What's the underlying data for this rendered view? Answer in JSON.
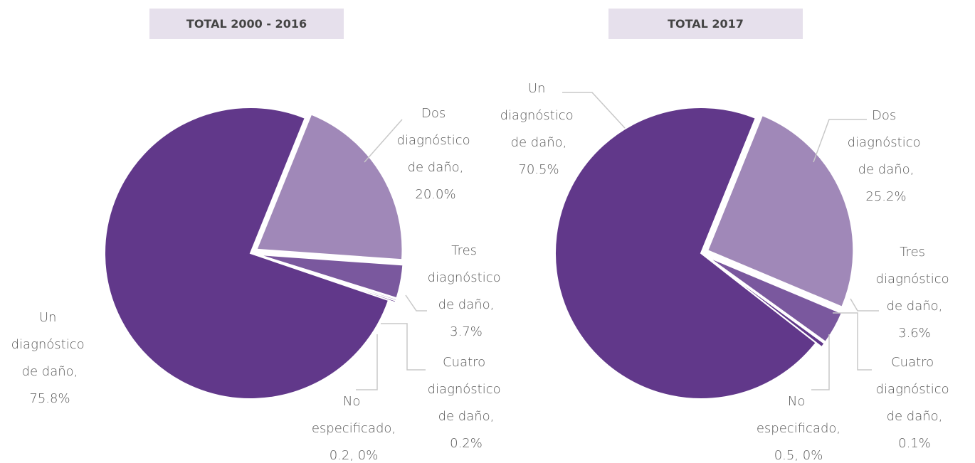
{
  "chart_data": [
    {
      "type": "pie",
      "title": "TOTAL 2000 - 2016",
      "categories": [
        "Dos diagnóstico de daño,",
        "Tres diagnóstico de daño,",
        "Cuatro diagnóstico de daño,",
        "No especificado,",
        "Un diagnóstico de daño,"
      ],
      "values": [
        20.0,
        3.7,
        0.2,
        0.2,
        75.8
      ],
      "value_labels": [
        "20.0%",
        "3.7%",
        "0.2%",
        "0.2, 0%",
        "75.8%"
      ],
      "colors": [
        "#a088b8",
        "#7a589e",
        "#a088b8",
        "#61388a",
        "#61388a"
      ]
    },
    {
      "type": "pie",
      "title": "TOTAL 2017",
      "categories": [
        "Dos diagnóstico de daño,",
        "Tres diagnóstico de daño,",
        "Cuatro diagnóstico de daño,",
        "No especificado,",
        "Un diagnóstico de daño,"
      ],
      "values": [
        25.2,
        3.6,
        0.1,
        0.5,
        70.5
      ],
      "value_labels": [
        "25.2%",
        "3.6%",
        "0.1%",
        "0.5, 0%",
        "70.5%"
      ],
      "colors": [
        "#a088b8",
        "#7a589e",
        "#a088b8",
        "#61388a",
        "#61388a"
      ]
    }
  ]
}
